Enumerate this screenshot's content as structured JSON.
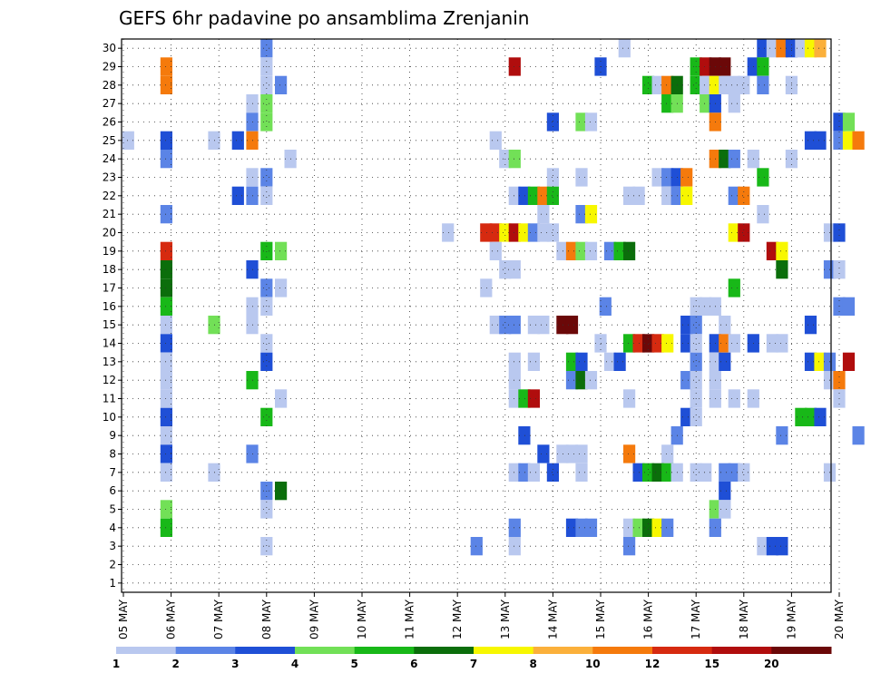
{
  "chart_data": {
    "type": "heatmap",
    "title": "GEFS 6hr padavine po ansamblima Zrenjanin",
    "xlabel": "",
    "ylabel": "",
    "x_tick_labels": [
      "05 MAY",
      "06 MAY",
      "07 MAY",
      "08 MAY",
      "09 MAY",
      "10 MAY",
      "11 MAY",
      "12 MAY",
      "13 MAY",
      "14 MAY",
      "15 MAY",
      "16 MAY",
      "17 MAY",
      "18 MAY",
      "19 MAY",
      "20 MAY"
    ],
    "y_tick_labels": [
      "1",
      "2",
      "3",
      "4",
      "5",
      "6",
      "7",
      "8",
      "9",
      "10",
      "11",
      "12",
      "13",
      "14",
      "15",
      "16",
      "17",
      "18",
      "19",
      "20",
      "21",
      "22",
      "23",
      "24",
      "25",
      "26",
      "27",
      "28",
      "29",
      "30"
    ],
    "grid": true,
    "legend_position": "bottom",
    "legend": {
      "labels": [
        "1",
        "2",
        "3",
        "4",
        "5",
        "6",
        "7",
        "8",
        "10",
        "12",
        "15",
        "20"
      ],
      "colors": [
        "#b9c8ef",
        "#5b84e6",
        "#1f4fd6",
        "#72e057",
        "#18b818",
        "#0b6e0b",
        "#f7f700",
        "#fbb03b",
        "#f57a0c",
        "#d62a10",
        "#b00d0d",
        "#6b0808"
      ]
    },
    "x_range": [
      "05 MAY",
      "20 MAY"
    ],
    "step": "6hr",
    "y_range": [
      1,
      30
    ],
    "cells": [
      [
        30,
        8.0,
        2
      ],
      [
        30,
        15.5,
        1
      ],
      [
        30,
        18.4,
        3
      ],
      [
        30,
        18.6,
        1
      ],
      [
        30,
        18.8,
        9
      ],
      [
        30,
        19.0,
        3
      ],
      [
        30,
        19.2,
        1
      ],
      [
        30,
        19.4,
        7
      ],
      [
        30,
        19.6,
        8
      ],
      [
        29,
        15.0,
        3
      ],
      [
        29,
        13.2,
        11
      ],
      [
        29,
        17.0,
        5
      ],
      [
        29,
        17.2,
        11
      ],
      [
        29,
        17.4,
        12
      ],
      [
        29,
        17.6,
        12
      ],
      [
        29,
        18.2,
        3
      ],
      [
        29,
        18.4,
        5
      ],
      [
        29,
        5.9,
        9
      ],
      [
        29,
        8.0,
        1
      ],
      [
        28,
        5.9,
        9
      ],
      [
        28,
        8.0,
        1
      ],
      [
        28,
        8.3,
        2
      ],
      [
        28,
        16.0,
        5
      ],
      [
        28,
        16.2,
        1
      ],
      [
        28,
        16.4,
        9
      ],
      [
        28,
        16.6,
        6
      ],
      [
        28,
        17.0,
        5
      ],
      [
        28,
        17.2,
        1
      ],
      [
        28,
        17.4,
        7
      ],
      [
        28,
        17.6,
        1
      ],
      [
        28,
        17.8,
        1
      ],
      [
        28,
        18.0,
        1
      ],
      [
        28,
        18.4,
        2
      ],
      [
        28,
        19.0,
        1
      ],
      [
        27,
        7.7,
        1
      ],
      [
        27,
        8.0,
        4
      ],
      [
        27,
        16.4,
        5
      ],
      [
        27,
        16.6,
        4
      ],
      [
        27,
        17.2,
        4
      ],
      [
        27,
        17.4,
        3
      ],
      [
        27,
        17.8,
        1
      ],
      [
        26,
        7.7,
        2
      ],
      [
        26,
        8.0,
        4
      ],
      [
        26,
        14.0,
        3
      ],
      [
        26,
        14.6,
        4
      ],
      [
        26,
        14.8,
        1
      ],
      [
        26,
        17.4,
        9
      ],
      [
        26,
        20.0,
        3
      ],
      [
        26,
        20.2,
        4
      ],
      [
        25,
        5.1,
        1
      ],
      [
        25,
        5.9,
        3
      ],
      [
        25,
        6.9,
        1
      ],
      [
        25,
        7.4,
        3
      ],
      [
        25,
        7.7,
        9
      ],
      [
        25,
        12.8,
        1
      ],
      [
        25,
        19.4,
        3
      ],
      [
        25,
        19.6,
        3
      ],
      [
        25,
        20.0,
        2
      ],
      [
        25,
        20.2,
        7
      ],
      [
        25,
        20.4,
        9
      ],
      [
        24,
        5.9,
        2
      ],
      [
        24,
        8.5,
        1
      ],
      [
        24,
        13.0,
        1
      ],
      [
        24,
        13.2,
        4
      ],
      [
        24,
        17.4,
        9
      ],
      [
        24,
        17.6,
        6
      ],
      [
        24,
        17.8,
        2
      ],
      [
        24,
        18.2,
        1
      ],
      [
        24,
        19.0,
        1
      ],
      [
        23,
        7.7,
        1
      ],
      [
        23,
        8.0,
        2
      ],
      [
        23,
        14.0,
        1
      ],
      [
        23,
        14.6,
        1
      ],
      [
        23,
        16.2,
        1
      ],
      [
        23,
        16.4,
        2
      ],
      [
        23,
        16.6,
        3
      ],
      [
        23,
        16.8,
        9
      ],
      [
        23,
        18.4,
        5
      ],
      [
        22,
        7.4,
        3
      ],
      [
        22,
        7.7,
        2
      ],
      [
        22,
        8.0,
        1
      ],
      [
        22,
        13.2,
        1
      ],
      [
        22,
        13.4,
        3
      ],
      [
        22,
        13.6,
        5
      ],
      [
        22,
        13.8,
        9
      ],
      [
        22,
        14.0,
        5
      ],
      [
        22,
        15.6,
        1
      ],
      [
        22,
        15.8,
        1
      ],
      [
        22,
        16.4,
        1
      ],
      [
        22,
        16.6,
        2
      ],
      [
        22,
        16.8,
        7
      ],
      [
        22,
        17.8,
        2
      ],
      [
        22,
        18.0,
        9
      ],
      [
        21,
        5.9,
        2
      ],
      [
        21,
        13.8,
        1
      ],
      [
        21,
        14.6,
        2
      ],
      [
        21,
        14.8,
        7
      ],
      [
        21,
        18.4,
        1
      ],
      [
        20,
        11.8,
        1
      ],
      [
        20,
        12.6,
        10
      ],
      [
        20,
        12.8,
        10
      ],
      [
        20,
        13.0,
        7
      ],
      [
        20,
        13.2,
        11
      ],
      [
        20,
        13.4,
        7
      ],
      [
        20,
        13.6,
        2
      ],
      [
        20,
        13.8,
        1
      ],
      [
        20,
        14.0,
        1
      ],
      [
        20,
        17.8,
        7
      ],
      [
        20,
        18.0,
        11
      ],
      [
        20,
        19.8,
        1
      ],
      [
        20,
        20.0,
        3
      ],
      [
        19,
        5.9,
        10
      ],
      [
        19,
        8.0,
        5
      ],
      [
        19,
        8.3,
        4
      ],
      [
        19,
        12.8,
        1
      ],
      [
        19,
        14.2,
        1
      ],
      [
        19,
        14.4,
        9
      ],
      [
        19,
        14.6,
        4
      ],
      [
        19,
        14.8,
        1
      ],
      [
        19,
        15.2,
        2
      ],
      [
        19,
        15.4,
        5
      ],
      [
        19,
        15.6,
        6
      ],
      [
        19,
        18.6,
        11
      ],
      [
        19,
        18.8,
        7
      ],
      [
        18,
        5.9,
        6
      ],
      [
        18,
        7.7,
        3
      ],
      [
        18,
        13.0,
        1
      ],
      [
        18,
        13.2,
        1
      ],
      [
        18,
        18.8,
        6
      ],
      [
        18,
        19.8,
        2
      ],
      [
        18,
        20.0,
        1
      ],
      [
        17,
        5.9,
        6
      ],
      [
        17,
        8.0,
        2
      ],
      [
        17,
        8.3,
        1
      ],
      [
        17,
        12.6,
        1
      ],
      [
        17,
        17.8,
        5
      ],
      [
        16,
        5.9,
        5
      ],
      [
        16,
        7.7,
        1
      ],
      [
        16,
        8.0,
        1
      ],
      [
        16,
        15.1,
        2
      ],
      [
        16,
        17.0,
        1
      ],
      [
        16,
        17.2,
        1
      ],
      [
        16,
        17.4,
        1
      ],
      [
        16,
        20.0,
        2
      ],
      [
        16,
        20.2,
        2
      ],
      [
        15,
        5.9,
        1
      ],
      [
        15,
        6.9,
        4
      ],
      [
        15,
        7.7,
        1
      ],
      [
        15,
        12.8,
        1
      ],
      [
        15,
        13.0,
        2
      ],
      [
        15,
        13.2,
        2
      ],
      [
        15,
        13.6,
        1
      ],
      [
        15,
        13.8,
        1
      ],
      [
        15,
        14.2,
        12
      ],
      [
        15,
        14.4,
        12
      ],
      [
        15,
        16.8,
        3
      ],
      [
        15,
        17.0,
        2
      ],
      [
        15,
        17.6,
        1
      ],
      [
        15,
        19.4,
        3
      ],
      [
        14,
        5.9,
        3
      ],
      [
        14,
        8.0,
        1
      ],
      [
        14,
        15.0,
        1
      ],
      [
        14,
        15.6,
        5
      ],
      [
        14,
        15.8,
        10
      ],
      [
        14,
        16.0,
        12
      ],
      [
        14,
        16.2,
        10
      ],
      [
        14,
        16.4,
        7
      ],
      [
        14,
        16.8,
        3
      ],
      [
        14,
        17.0,
        1
      ],
      [
        14,
        17.4,
        3
      ],
      [
        14,
        17.6,
        9
      ],
      [
        14,
        17.8,
        1
      ],
      [
        14,
        18.2,
        3
      ],
      [
        14,
        18.6,
        1
      ],
      [
        14,
        18.8,
        1
      ],
      [
        13,
        5.9,
        1
      ],
      [
        13,
        8.0,
        3
      ],
      [
        13,
        13.2,
        1
      ],
      [
        13,
        13.6,
        1
      ],
      [
        13,
        14.4,
        5
      ],
      [
        13,
        14.6,
        3
      ],
      [
        13,
        15.2,
        1
      ],
      [
        13,
        15.4,
        3
      ],
      [
        13,
        17.0,
        2
      ],
      [
        13,
        17.4,
        1
      ],
      [
        13,
        17.6,
        3
      ],
      [
        13,
        19.4,
        3
      ],
      [
        13,
        19.6,
        7
      ],
      [
        13,
        19.8,
        2
      ],
      [
        13,
        20.2,
        11
      ],
      [
        12,
        5.9,
        1
      ],
      [
        12,
        7.7,
        5
      ],
      [
        12,
        13.2,
        1
      ],
      [
        12,
        14.4,
        2
      ],
      [
        12,
        14.6,
        6
      ],
      [
        12,
        14.8,
        1
      ],
      [
        12,
        16.8,
        2
      ],
      [
        12,
        17.0,
        1
      ],
      [
        12,
        17.4,
        1
      ],
      [
        12,
        19.8,
        1
      ],
      [
        12,
        20.0,
        9
      ],
      [
        11,
        5.9,
        1
      ],
      [
        11,
        8.3,
        1
      ],
      [
        11,
        13.2,
        1
      ],
      [
        11,
        13.4,
        5
      ],
      [
        11,
        13.6,
        11
      ],
      [
        11,
        15.6,
        1
      ],
      [
        11,
        17.0,
        1
      ],
      [
        11,
        17.4,
        1
      ],
      [
        11,
        17.8,
        1
      ],
      [
        11,
        18.2,
        1
      ],
      [
        11,
        20.0,
        1
      ],
      [
        10,
        5.9,
        3
      ],
      [
        10,
        8.0,
        5
      ],
      [
        10,
        16.8,
        3
      ],
      [
        10,
        17.0,
        1
      ],
      [
        10,
        19.2,
        5
      ],
      [
        10,
        19.4,
        5
      ],
      [
        10,
        19.6,
        3
      ],
      [
        9,
        5.9,
        1
      ],
      [
        9,
        13.4,
        3
      ],
      [
        9,
        16.6,
        2
      ],
      [
        9,
        18.8,
        2
      ],
      [
        9,
        20.4,
        2
      ],
      [
        8,
        5.9,
        3
      ],
      [
        8,
        7.7,
        2
      ],
      [
        8,
        13.8,
        3
      ],
      [
        8,
        14.2,
        1
      ],
      [
        8,
        14.4,
        1
      ],
      [
        8,
        14.6,
        1
      ],
      [
        8,
        15.6,
        9
      ],
      [
        8,
        16.4,
        1
      ],
      [
        7,
        5.9,
        1
      ],
      [
        7,
        6.9,
        1
      ],
      [
        7,
        13.2,
        1
      ],
      [
        7,
        13.4,
        2
      ],
      [
        7,
        13.6,
        1
      ],
      [
        7,
        14.0,
        3
      ],
      [
        7,
        14.6,
        1
      ],
      [
        7,
        15.8,
        3
      ],
      [
        7,
        16.0,
        5
      ],
      [
        7,
        16.2,
        6
      ],
      [
        7,
        16.4,
        5
      ],
      [
        7,
        16.6,
        1
      ],
      [
        7,
        17.0,
        1
      ],
      [
        7,
        17.2,
        1
      ],
      [
        7,
        17.6,
        2
      ],
      [
        7,
        17.8,
        2
      ],
      [
        7,
        18.0,
        1
      ],
      [
        7,
        19.8,
        1
      ],
      [
        6,
        8.3,
        6
      ],
      [
        6,
        8.0,
        2
      ],
      [
        6,
        17.6,
        3
      ],
      [
        5,
        5.9,
        4
      ],
      [
        5,
        8.0,
        1
      ],
      [
        5,
        17.6,
        1
      ],
      [
        5,
        17.4,
        4
      ],
      [
        5,
        17.6,
        1
      ],
      [
        4,
        5.9,
        5
      ],
      [
        4,
        17.4,
        2
      ],
      [
        4,
        15.6,
        1
      ],
      [
        4,
        15.8,
        4
      ],
      [
        4,
        16.0,
        6
      ],
      [
        4,
        16.2,
        7
      ],
      [
        4,
        16.4,
        2
      ],
      [
        4,
        14.4,
        3
      ],
      [
        4,
        14.6,
        2
      ],
      [
        4,
        14.8,
        2
      ],
      [
        4,
        13.2,
        2
      ],
      [
        3,
        8.0,
        1
      ],
      [
        3,
        12.4,
        2
      ],
      [
        3,
        13.2,
        1
      ],
      [
        3,
        15.6,
        2
      ],
      [
        3,
        18.4,
        1
      ],
      [
        3,
        18.6,
        3
      ],
      [
        3,
        18.8,
        3
      ]
    ]
  }
}
